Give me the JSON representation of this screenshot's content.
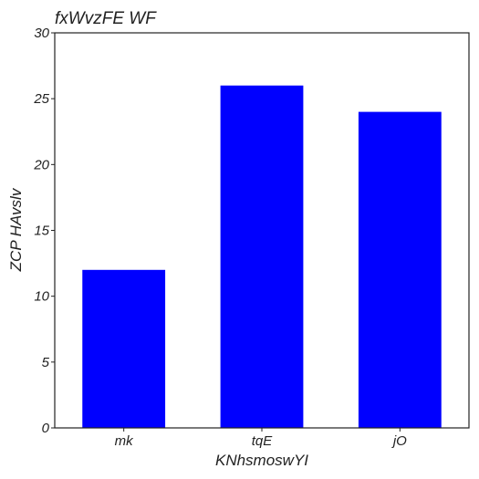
{
  "chart_data": {
    "type": "bar",
    "title": "fxWvzFE WF",
    "xlabel": "KNhsmoswYI",
    "ylabel": "ZCP HAvslv",
    "categories": [
      "mk",
      "tqE",
      "jO"
    ],
    "values": [
      12,
      26,
      24
    ],
    "ylim": [
      0,
      30
    ],
    "yticks": [
      0,
      5,
      10,
      15,
      20,
      25,
      30
    ],
    "bar_color": "#0000ff",
    "grid": false,
    "legend": "none"
  }
}
